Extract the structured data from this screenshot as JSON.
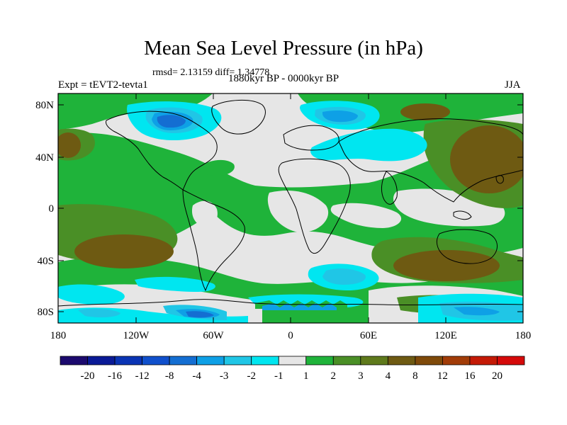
{
  "title": "Mean Sea Level Pressure (in hPa)",
  "stats": "rmsd= 2.13159 diff= 1.34778",
  "expt": "Expt = tEVT2-tevta1",
  "period": "1880kyr BP - 0000kyr BP",
  "season": "JJA",
  "lat_ticks": [
    "80N",
    "40N",
    "0",
    "40S",
    "80S"
  ],
  "lon_ticks": [
    "180",
    "120W",
    "60W",
    "0",
    "60E",
    "120E",
    "180"
  ],
  "colorbar": {
    "colors": [
      "#1c0a6e",
      "#0a1a96",
      "#0a34b4",
      "#1050cc",
      "#146ed2",
      "#0ea0e6",
      "#20c6e6",
      "#00e6f0",
      "#e6e6e6",
      "#1fb33a",
      "#4a8f26",
      "#5f7a1c",
      "#6e5a12",
      "#7f4a0a",
      "#a23c08",
      "#c41a06",
      "#d50a0a"
    ],
    "labels": [
      "-20",
      "-16",
      "-12",
      "-8",
      "-4",
      "-3",
      "-2",
      "-1",
      "1",
      "2",
      "3",
      "4",
      "8",
      "12",
      "16",
      "20"
    ]
  }
}
